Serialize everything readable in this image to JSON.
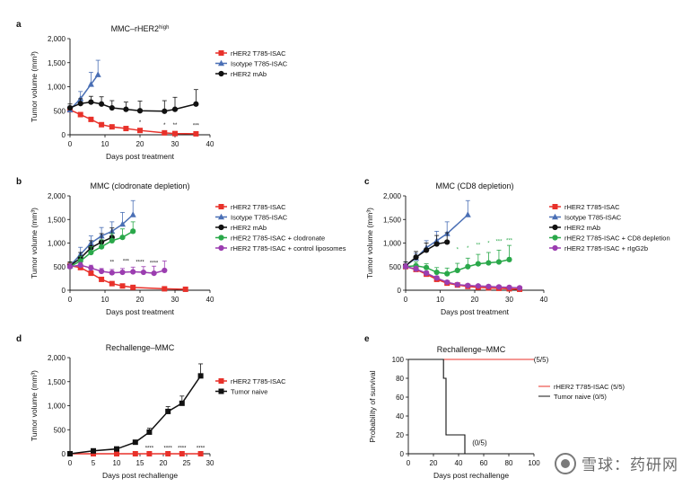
{
  "chart_data": [
    {
      "panel": "a",
      "type": "line",
      "title": "MMC–rHER2",
      "title_sup": "high",
      "xlabel": "Days post treatment",
      "ylabel": "Tumor volume (mm³)",
      "xlim": [
        0,
        40
      ],
      "ylim": [
        0,
        2000
      ],
      "xticks": [
        "0",
        "10",
        "20",
        "30",
        "40"
      ],
      "yticks": [
        "0",
        "500",
        "1,000",
        "1,500",
        "2,000"
      ],
      "legend": "top-right",
      "series": [
        {
          "name": "rHER2 T785-ISAC",
          "color": "#e8312a",
          "marker": "square",
          "x": [
            0,
            3,
            6,
            9,
            12,
            16,
            20,
            27,
            30,
            36
          ],
          "y": [
            520,
            420,
            320,
            210,
            165,
            130,
            90,
            40,
            25,
            20
          ],
          "err": [
            60,
            40,
            40,
            30,
            25,
            20,
            18,
            10,
            8,
            8
          ]
        },
        {
          "name": "Isotype T785-ISAC",
          "color": "#4a6fb5",
          "marker": "triangle",
          "x": [
            0,
            3,
            6,
            8
          ],
          "y": [
            520,
            750,
            1050,
            1250
          ],
          "err": [
            80,
            150,
            250,
            300
          ]
        },
        {
          "name": "rHER2 mAb",
          "color": "#111111",
          "marker": "circle",
          "x": [
            0,
            3,
            6,
            9,
            12,
            16,
            20,
            27,
            30,
            36
          ],
          "y": [
            560,
            650,
            680,
            640,
            560,
            530,
            500,
            490,
            530,
            640
          ],
          "err": [
            80,
            100,
            120,
            150,
            150,
            150,
            200,
            220,
            250,
            300
          ]
        }
      ],
      "annotations": [
        "*",
        "*",
        "**",
        "***"
      ]
    },
    {
      "panel": "b",
      "type": "line",
      "title": "MMC (clodronate depletion)",
      "xlabel": "Days post treatment",
      "ylabel": "Tumor volume (mm³)",
      "xlim": [
        0,
        40
      ],
      "ylim": [
        0,
        2000
      ],
      "xticks": [
        "0",
        "10",
        "20",
        "30",
        "40"
      ],
      "yticks": [
        "0",
        "500",
        "1,000",
        "1,500",
        "2,000"
      ],
      "legend": "right",
      "series": [
        {
          "name": "rHER2 T785-ISAC",
          "color": "#e8312a",
          "marker": "square",
          "x": [
            0,
            3,
            6,
            9,
            12,
            15,
            18,
            27,
            33
          ],
          "y": [
            520,
            480,
            360,
            230,
            140,
            90,
            60,
            30,
            20
          ],
          "err": [
            60,
            60,
            50,
            40,
            30,
            20,
            15,
            10,
            8
          ]
        },
        {
          "name": "Isotype T785-ISAC",
          "color": "#4a6fb5",
          "marker": "triangle",
          "x": [
            0,
            3,
            6,
            9,
            12,
            15,
            18
          ],
          "y": [
            520,
            760,
            1000,
            1150,
            1250,
            1400,
            1600
          ],
          "err": [
            80,
            150,
            150,
            180,
            200,
            250,
            300
          ]
        },
        {
          "name": "rHER2 mAb",
          "color": "#111111",
          "marker": "circle",
          "x": [
            0,
            3,
            6,
            9,
            12
          ],
          "y": [
            520,
            680,
            900,
            1020,
            1120
          ],
          "err": [
            80,
            120,
            150,
            180,
            200
          ]
        },
        {
          "name": "rHER2 T785-ISAC + clodronate",
          "color": "#2aa84a",
          "marker": "circle",
          "x": [
            0,
            3,
            6,
            9,
            12,
            15,
            18
          ],
          "y": [
            500,
            620,
            800,
            920,
            1050,
            1120,
            1250
          ],
          "err": [
            70,
            100,
            120,
            150,
            150,
            180,
            200
          ]
        },
        {
          "name": "rHER2 T785-ISAC + control liposomes",
          "color": "#9b3db0",
          "marker": "circle",
          "x": [
            0,
            3,
            6,
            9,
            12,
            15,
            18,
            21,
            24,
            27
          ],
          "y": [
            500,
            530,
            470,
            400,
            370,
            380,
            390,
            380,
            360,
            420
          ],
          "err": [
            60,
            60,
            60,
            60,
            70,
            80,
            100,
            120,
            150,
            200
          ]
        }
      ],
      "annotations": [
        "**",
        "***",
        "****",
        "****"
      ]
    },
    {
      "panel": "c",
      "type": "line",
      "title": "MMC (CD8 depletion)",
      "xlabel": "Days post treatment",
      "ylabel": "Tumor volume (mm³)",
      "xlim": [
        0,
        40
      ],
      "ylim": [
        0,
        2000
      ],
      "xticks": [
        "0",
        "10",
        "20",
        "30",
        "40"
      ],
      "yticks": [
        "0",
        "500",
        "1,000",
        "1,500",
        "2,000"
      ],
      "legend": "right",
      "series": [
        {
          "name": "rHER2 T785-ISAC",
          "color": "#e8312a",
          "marker": "square",
          "x": [
            0,
            3,
            6,
            9,
            12,
            15,
            18,
            21,
            24,
            27,
            30,
            33
          ],
          "y": [
            500,
            440,
            340,
            230,
            150,
            110,
            80,
            60,
            50,
            40,
            30,
            20
          ],
          "err": [
            60,
            50,
            40,
            30,
            25,
            20,
            15,
            12,
            10,
            8,
            8,
            8
          ]
        },
        {
          "name": "Isotype T785-ISAC",
          "color": "#4a6fb5",
          "marker": "triangle",
          "x": [
            0,
            3,
            6,
            9,
            12,
            18
          ],
          "y": [
            520,
            680,
            900,
            1050,
            1200,
            1600
          ],
          "err": [
            80,
            100,
            150,
            200,
            250,
            300
          ]
        },
        {
          "name": "rHER2 mAb",
          "color": "#111111",
          "marker": "circle",
          "x": [
            0,
            3,
            6,
            9,
            12
          ],
          "y": [
            520,
            700,
            850,
            980,
            1020
          ],
          "err": [
            80,
            120,
            150,
            180,
            200
          ]
        },
        {
          "name": "rHER2 T785-ISAC + CD8 depletion",
          "color": "#2aa84a",
          "marker": "circle",
          "x": [
            0,
            3,
            6,
            9,
            12,
            15,
            18,
            21,
            24,
            27,
            30
          ],
          "y": [
            500,
            520,
            480,
            380,
            350,
            420,
            500,
            560,
            580,
            600,
            650
          ],
          "err": [
            60,
            80,
            80,
            100,
            120,
            150,
            180,
            200,
            220,
            250,
            300
          ]
        },
        {
          "name": "rHER2 T785-ISAC + rIgG2b",
          "color": "#9b3db0",
          "marker": "circle",
          "x": [
            0,
            3,
            6,
            9,
            12,
            15,
            18,
            21,
            24,
            27,
            30,
            33
          ],
          "y": [
            500,
            450,
            360,
            260,
            170,
            120,
            100,
            90,
            80,
            70,
            60,
            50
          ],
          "err": [
            60,
            60,
            50,
            40,
            30,
            25,
            20,
            18,
            15,
            12,
            10,
            10
          ]
        }
      ],
      "annotations": [
        "*",
        "*",
        "**",
        "*",
        "***",
        "***"
      ]
    },
    {
      "panel": "d",
      "type": "line",
      "title": "Rechallenge–MMC",
      "xlabel": "Days post rechallenge",
      "ylabel": "Tumor volume (mm³)",
      "xlim": [
        0,
        30
      ],
      "ylim": [
        0,
        2000
      ],
      "xticks": [
        "0",
        "5",
        "10",
        "15",
        "20",
        "25",
        "30"
      ],
      "yticks": [
        "0",
        "500",
        "1,000",
        "1,500",
        "2,000"
      ],
      "legend": "right",
      "series": [
        {
          "name": "rHER2 T785-ISAC",
          "color": "#e8312a",
          "marker": "square",
          "x": [
            0,
            5,
            10,
            14,
            17,
            21,
            24,
            28
          ],
          "y": [
            0,
            0,
            0,
            0,
            0,
            0,
            0,
            0
          ],
          "err": [
            5,
            5,
            5,
            5,
            5,
            5,
            5,
            5
          ]
        },
        {
          "name": "Tumor naive",
          "color": "#111111",
          "marker": "square",
          "x": [
            0,
            5,
            10,
            14,
            17,
            21,
            24,
            28
          ],
          "y": [
            0,
            60,
            100,
            240,
            450,
            880,
            1050,
            1620
          ],
          "err": [
            10,
            20,
            30,
            40,
            80,
            100,
            150,
            250
          ]
        }
      ],
      "annotations": [
        "****",
        "****",
        "****",
        "****"
      ]
    },
    {
      "panel": "e",
      "type": "line",
      "title": "Rechallenge–MMC",
      "xlabel": "Days post rechallenge",
      "ylabel": "Probability of survival",
      "xlim": [
        0,
        100
      ],
      "ylim": [
        0,
        100
      ],
      "xticks": [
        "0",
        "20",
        "40",
        "60",
        "80",
        "100"
      ],
      "yticks": [
        "0",
        "20",
        "40",
        "60",
        "80",
        "100"
      ],
      "legend": "right",
      "series": [
        {
          "name": "rHER2 T785-ISAC (5/5)",
          "color": "#e8312a",
          "marker": "none",
          "x": [
            0,
            100
          ],
          "y": [
            100,
            100
          ]
        },
        {
          "name": "Tumor naive (0/5)",
          "color": "#111111",
          "marker": "none",
          "x": [
            0,
            28,
            28,
            30,
            30,
            33,
            33,
            45,
            45,
            48
          ],
          "y": [
            100,
            100,
            80,
            80,
            20,
            20,
            20,
            20,
            0,
            0
          ]
        }
      ],
      "annotations": [
        "(5/5)",
        "(0/5)"
      ]
    }
  ],
  "panel_labels": [
    "a",
    "b",
    "c",
    "d",
    "e"
  ],
  "watermark": "雪球：药研网"
}
